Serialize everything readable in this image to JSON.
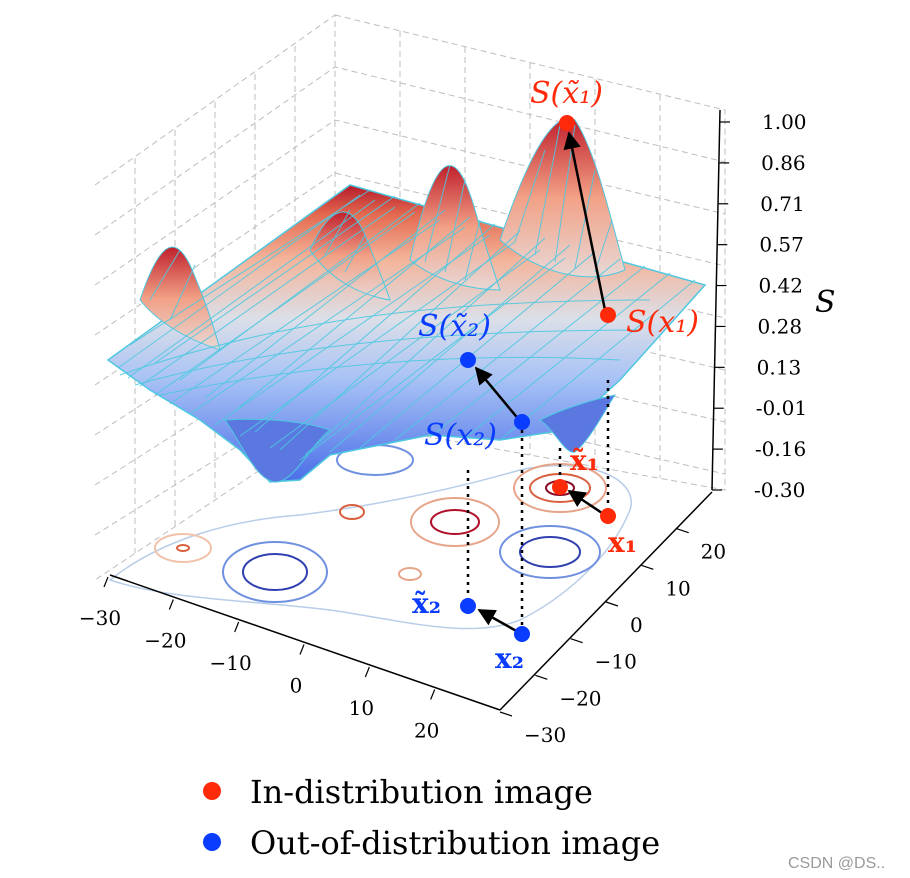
{
  "chart_data": {
    "type": "surface3d",
    "zlabel": "S",
    "xlim": [
      -30,
      30
    ],
    "ylim": [
      -30,
      30
    ],
    "zlim": [
      -0.3,
      1.0
    ],
    "x_ticks": [
      "−30",
      "−20",
      "−10",
      "0",
      "10",
      "20"
    ],
    "y_ticks": [
      "−30",
      "−20",
      "−10",
      "0",
      "10",
      "20"
    ],
    "z_ticks": [
      "1.00",
      "0.86",
      "0.71",
      "0.57",
      "0.42",
      "0.28",
      "0.13",
      "-0.01",
      "-0.16",
      "-0.30"
    ],
    "points": [
      {
        "name": "x1",
        "label": "x₁",
        "surface_label": "S(x₁)",
        "group": "in",
        "x": 26,
        "y": 2,
        "s": 0.35
      },
      {
        "name": "x1_tilde",
        "label": "x̃₁",
        "surface_label": "S(x̃₁)",
        "group": "in",
        "x": 17,
        "y": 10,
        "s": 1.0
      },
      {
        "name": "x2",
        "label": "x₂",
        "surface_label": "S(x₂)",
        "group": "ood",
        "x": 20,
        "y": -20,
        "s": 0.02
      },
      {
        "name": "x2_tilde",
        "label": "x̃₂",
        "surface_label": "S(x̃₂)",
        "group": "ood",
        "x": 10,
        "y": -20,
        "s": 0.23
      }
    ],
    "legend": [
      {
        "label": "In-distribution image",
        "color": "#ff2a0a"
      },
      {
        "label": "Out-of-distribution image",
        "color": "#0a3cff"
      }
    ]
  },
  "colors": {
    "in": "#ff2a0a",
    "ood": "#0a3cff",
    "mesh": "#4dc8e0"
  },
  "watermark": "CSDN @DS.."
}
